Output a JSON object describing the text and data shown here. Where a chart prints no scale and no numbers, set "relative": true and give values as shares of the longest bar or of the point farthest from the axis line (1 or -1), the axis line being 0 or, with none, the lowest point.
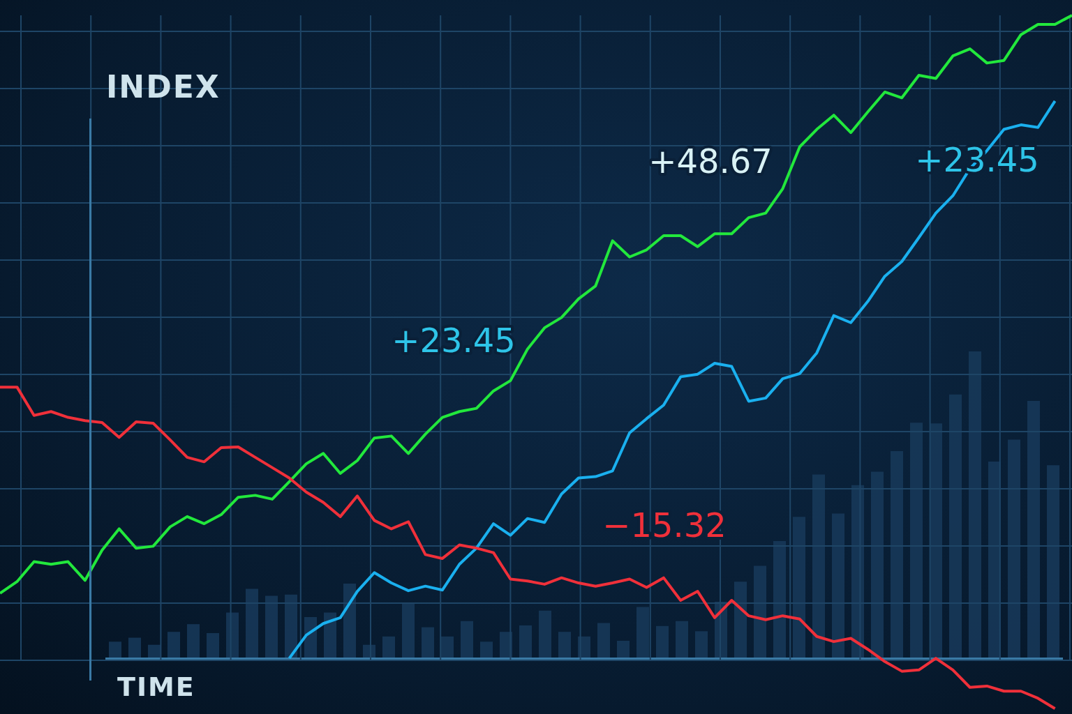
{
  "chart_data": [
    {
      "type": "line",
      "relative": true,
      "xlabel": "TIME",
      "ylabel": "INDEX",
      "grid": true,
      "marker": "none",
      "annotations": [
        "+48.67",
        "+23.45",
        "+23.45",
        "−15.32"
      ],
      "categories": [
        null,
        null,
        null,
        null,
        null,
        null,
        null,
        null,
        null,
        null,
        null,
        null,
        null,
        null,
        null,
        null,
        null,
        null,
        null,
        null,
        null,
        null,
        null,
        null,
        null,
        null,
        null,
        null,
        null,
        null,
        null,
        null,
        null,
        null,
        null,
        null,
        null,
        null,
        null,
        null,
        null,
        null,
        null,
        null,
        null,
        null,
        null,
        null,
        null,
        null,
        null,
        null,
        null,
        null,
        null,
        null,
        null,
        null,
        null,
        null,
        null,
        null,
        null,
        null
      ],
      "series": [
        {
          "color": "#22e83c",
          "values": [
            0.103,
            0.121,
            0.152,
            0.148,
            0.152,
            0.123,
            0.17,
            0.203,
            0.173,
            0.176,
            0.206,
            0.222,
            0.211,
            0.225,
            0.252,
            0.255,
            0.249,
            0.276,
            0.304,
            0.32,
            0.289,
            0.309,
            0.344,
            0.347,
            0.32,
            0.35,
            0.376,
            0.385,
            0.39,
            0.417,
            0.433,
            0.482,
            0.515,
            0.531,
            0.56,
            0.58,
            0.65,
            0.625,
            0.636,
            0.658,
            0.658,
            0.641,
            0.661,
            0.661,
            0.686,
            0.693,
            0.731,
            0.796,
            0.823,
            0.845,
            0.818,
            0.85,
            0.881,
            0.872,
            0.907,
            0.902,
            0.937,
            0.948,
            0.926,
            0.93,
            0.97,
            0.986,
            0.986,
            1
          ]
        },
        {
          "color": "#1ab0ef",
          "values": [
            null,
            null,
            null,
            null,
            null,
            null,
            null,
            null,
            null,
            null,
            null,
            null,
            null,
            null,
            null,
            null,
            null,
            0.002,
            0.038,
            0.056,
            0.065,
            0.106,
            0.135,
            0.119,
            0.107,
            0.114,
            0.108,
            0.148,
            0.173,
            0.211,
            0.193,
            0.219,
            0.213,
            0.257,
            0.282,
            0.284,
            0.293,
            0.352,
            0.374,
            0.395,
            0.439,
            0.443,
            0.46,
            0.455,
            0.401,
            0.406,
            0.436,
            0.444,
            0.476,
            0.534,
            0.523,
            0.556,
            0.595,
            0.618,
            0.655,
            0.693,
            0.72,
            0.762,
            0.79,
            0.823,
            0.83,
            0.826,
            0.867,
            null
          ]
        },
        {
          "color": "#f0303a",
          "values": [
            0.423,
            0.423,
            0.379,
            0.385,
            0.376,
            0.371,
            0.368,
            0.345,
            0.369,
            0.367,
            0.341,
            0.314,
            0.307,
            0.329,
            0.33,
            0.314,
            0.298,
            0.282,
            0.26,
            0.244,
            0.222,
            0.254,
            0.216,
            0.203,
            0.214,
            0.163,
            0.157,
            0.178,
            0.173,
            0.166,
            0.125,
            0.122,
            0.117,
            0.127,
            0.119,
            0.114,
            0.119,
            0.125,
            0.112,
            0.127,
            0.092,
            0.106,
            0.065,
            0.092,
            0.068,
            0.062,
            0.068,
            0.063,
            0.036,
            0.028,
            0.033,
            0.016,
            -0.003,
            -0.018,
            -0.016,
            0.002,
            -0.016,
            -0.043,
            -0.041,
            -0.049,
            -0.049,
            -0.06,
            -0.076,
            null
          ]
        }
      ]
    },
    {
      "type": "bar",
      "relative": true,
      "color": "#17395a",
      "categories": [
        null,
        null,
        null,
        null,
        null,
        null,
        null,
        null,
        null,
        null,
        null,
        null,
        null,
        null,
        null,
        null,
        null,
        null,
        null,
        null,
        null,
        null,
        null,
        null,
        null,
        null,
        null,
        null,
        null,
        null,
        null,
        null,
        null,
        null,
        null,
        null,
        null,
        null,
        null,
        null,
        null,
        null,
        null,
        null,
        null,
        null,
        null,
        null,
        null
      ],
      "values": [
        0.056,
        0.069,
        0.046,
        0.088,
        0.113,
        0.084,
        0.151,
        0.228,
        0.205,
        0.209,
        0.136,
        0.151,
        0.245,
        0.046,
        0.073,
        0.182,
        0.103,
        0.073,
        0.123,
        0.056,
        0.088,
        0.109,
        0.157,
        0.088,
        0.073,
        0.117,
        0.059,
        0.169,
        0.107,
        0.123,
        0.09,
        0.186,
        0.251,
        0.303,
        0.383,
        0.462,
        0.6,
        0.473,
        0.565,
        0.609,
        0.676,
        0.768,
        0.766,
        0.86,
        1,
        0.642,
        0.713,
        0.839,
        0.63
      ]
    }
  ]
}
